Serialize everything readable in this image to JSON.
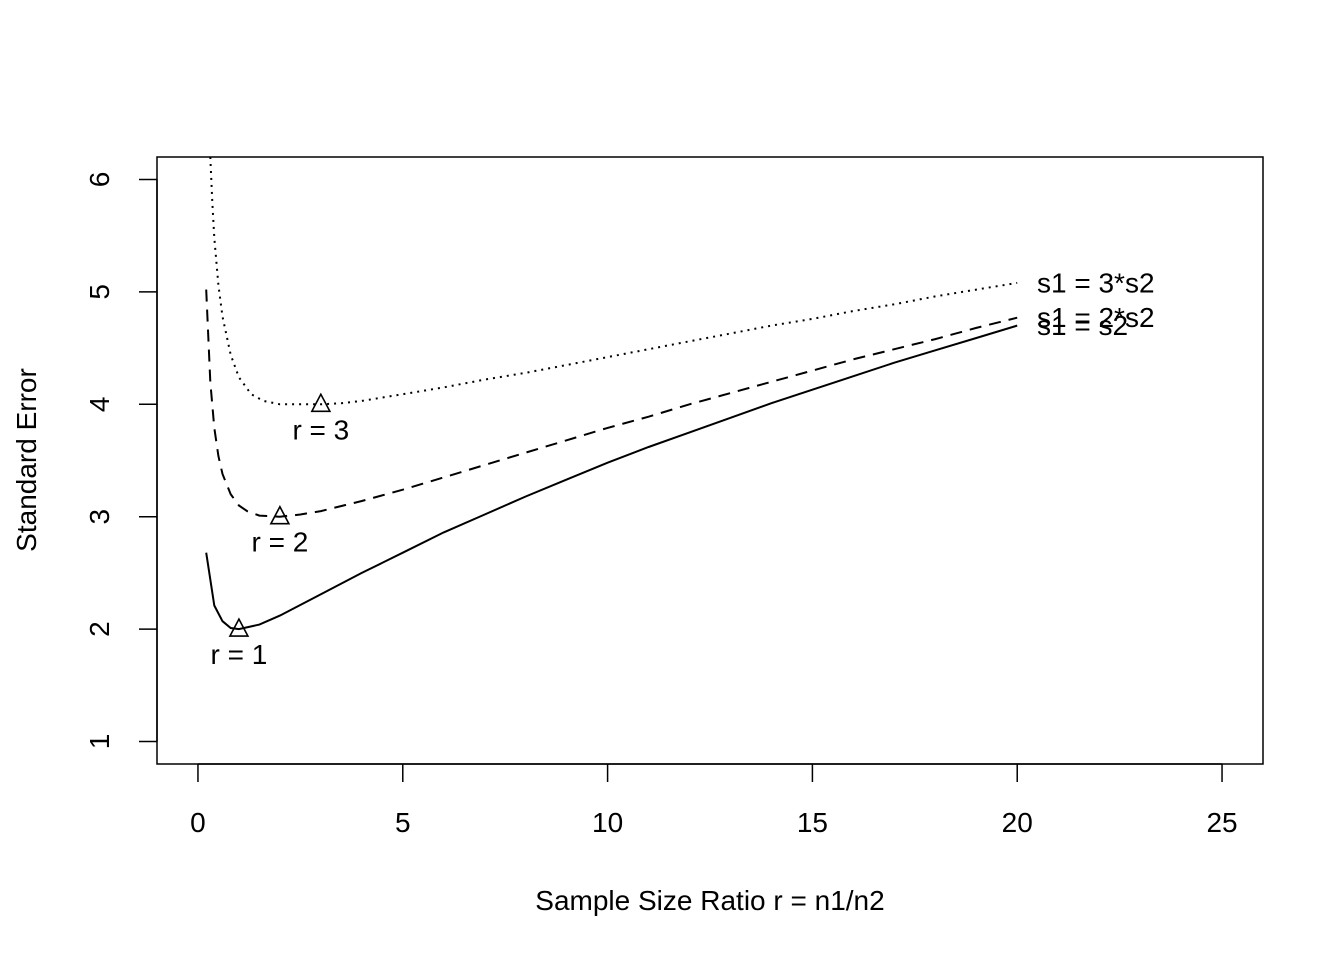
{
  "chart_data": {
    "type": "line",
    "title": "",
    "xlabel": "Sample Size Ratio r = n1/n2",
    "ylabel": "Standard Error",
    "xlim": [
      -1,
      26
    ],
    "ylim": [
      0.8,
      6.2
    ],
    "xticks": [
      0,
      5,
      10,
      15,
      20,
      25
    ],
    "yticks": [
      1,
      2,
      3,
      4,
      5,
      6
    ],
    "grid": false,
    "legend": "none",
    "series": [
      {
        "name": "s1 = s2",
        "line_style": "solid",
        "k": 1,
        "x": [
          0.2,
          0.4,
          0.6,
          0.8,
          1.0,
          1.5,
          2,
          3,
          4,
          5,
          6,
          7,
          8,
          9,
          10,
          11,
          12,
          13,
          14,
          15,
          16,
          17,
          18,
          19,
          20
        ],
        "y": [
          2.68,
          2.21,
          2.07,
          2.01,
          2.0,
          2.04,
          2.12,
          2.31,
          2.5,
          2.68,
          2.86,
          3.02,
          3.18,
          3.33,
          3.48,
          3.62,
          3.75,
          3.88,
          4.01,
          4.13,
          4.25,
          4.37,
          4.48,
          4.59,
          4.7
        ],
        "minimum": {
          "x": 1,
          "y": 2,
          "label": "r = 1"
        }
      },
      {
        "name": "s1 = 2*s2",
        "line_style": "dashed",
        "k": 2,
        "x": [
          0.2,
          0.3,
          0.4,
          0.5,
          0.6,
          0.8,
          1.0,
          1.2,
          1.5,
          2,
          2.5,
          3,
          4,
          5,
          6,
          7,
          8,
          9,
          10,
          11,
          12,
          13,
          14,
          15,
          16,
          17,
          18,
          19,
          20
        ],
        "y": [
          5.02,
          4.2,
          3.79,
          3.54,
          3.38,
          3.2,
          3.1,
          3.05,
          3.01,
          3.0,
          3.02,
          3.05,
          3.14,
          3.24,
          3.35,
          3.46,
          3.57,
          3.68,
          3.79,
          3.89,
          4.0,
          4.1,
          4.2,
          4.3,
          4.4,
          4.49,
          4.58,
          4.68,
          4.77
        ],
        "minimum": {
          "x": 2,
          "y": 3,
          "label": "r = 2"
        }
      },
      {
        "name": "s1 = 3*s2",
        "line_style": "dotted",
        "k": 3,
        "x": [
          0.3,
          0.35,
          0.4,
          0.5,
          0.6,
          0.8,
          1.0,
          1.3,
          1.6,
          2,
          2.5,
          3,
          3.5,
          4,
          5,
          6,
          7,
          8,
          9,
          10,
          11,
          12,
          13,
          14,
          15,
          16,
          17,
          18,
          19,
          20
        ],
        "y": [
          6.2,
          5.8,
          5.48,
          5.06,
          4.78,
          4.44,
          4.24,
          4.09,
          4.03,
          4.0,
          4.0,
          4.0,
          4.01,
          4.03,
          4.09,
          4.15,
          4.22,
          4.28,
          4.35,
          4.42,
          4.49,
          4.56,
          4.63,
          4.7,
          4.76,
          4.83,
          4.89,
          4.96,
          5.02,
          5.08
        ],
        "minimum": {
          "x": 3,
          "y": 4,
          "label": "r = 3"
        }
      }
    ]
  }
}
